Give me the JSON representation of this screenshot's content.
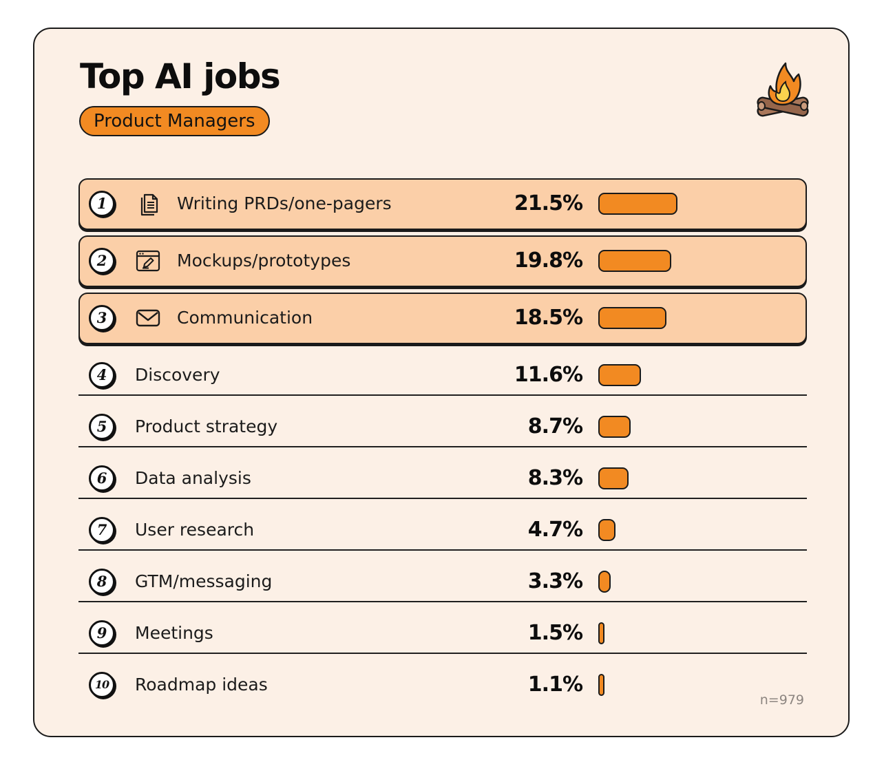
{
  "title": "Top AI jobs",
  "subtitle": "Product Managers",
  "sample_note": "n=979",
  "colors": {
    "background": "#fcf0e6",
    "highlight_row": "#fbcfa8",
    "bar": "#f28a22",
    "outline": "#1a1a1a"
  },
  "chart_data": {
    "type": "bar",
    "orientation": "horizontal",
    "title": "Top AI jobs",
    "subtitle": "Product Managers",
    "unit": "%",
    "note": "n=979",
    "categories": [
      "Writing PRDs/one-pagers",
      "Mockups/prototypes",
      "Communication",
      "Discovery",
      "Product strategy",
      "Data analysis",
      "User research",
      "GTM/messaging",
      "Meetings",
      "Roadmap ideas"
    ],
    "values": [
      21.5,
      19.8,
      18.5,
      11.6,
      8.7,
      8.3,
      4.7,
      3.3,
      1.5,
      1.1
    ],
    "xlim": [
      0,
      25
    ],
    "items": [
      {
        "rank": "1",
        "label": "Writing PRDs/one-pagers",
        "value": 21.5,
        "display": "21.5%",
        "icon": "document-icon",
        "highlight": true
      },
      {
        "rank": "2",
        "label": "Mockups/prototypes",
        "value": 19.8,
        "display": "19.8%",
        "icon": "browser-edit-icon",
        "highlight": true
      },
      {
        "rank": "3",
        "label": "Communication",
        "value": 18.5,
        "display": "18.5%",
        "icon": "mail-icon",
        "highlight": true
      },
      {
        "rank": "4",
        "label": "Discovery",
        "value": 11.6,
        "display": "11.6%",
        "icon": "",
        "highlight": false
      },
      {
        "rank": "5",
        "label": "Product strategy",
        "value": 8.7,
        "display": "8.7%",
        "icon": "",
        "highlight": false
      },
      {
        "rank": "6",
        "label": "Data analysis",
        "value": 8.3,
        "display": "8.3%",
        "icon": "",
        "highlight": false
      },
      {
        "rank": "7",
        "label": "User research",
        "value": 4.7,
        "display": "4.7%",
        "icon": "",
        "highlight": false
      },
      {
        "rank": "8",
        "label": "GTM/messaging",
        "value": 3.3,
        "display": "3.3%",
        "icon": "",
        "highlight": false
      },
      {
        "rank": "9",
        "label": "Meetings",
        "value": 1.5,
        "display": "1.5%",
        "icon": "",
        "highlight": false
      },
      {
        "rank": "10",
        "label": "Roadmap ideas",
        "value": 1.1,
        "display": "1.1%",
        "icon": "",
        "highlight": false
      }
    ]
  }
}
